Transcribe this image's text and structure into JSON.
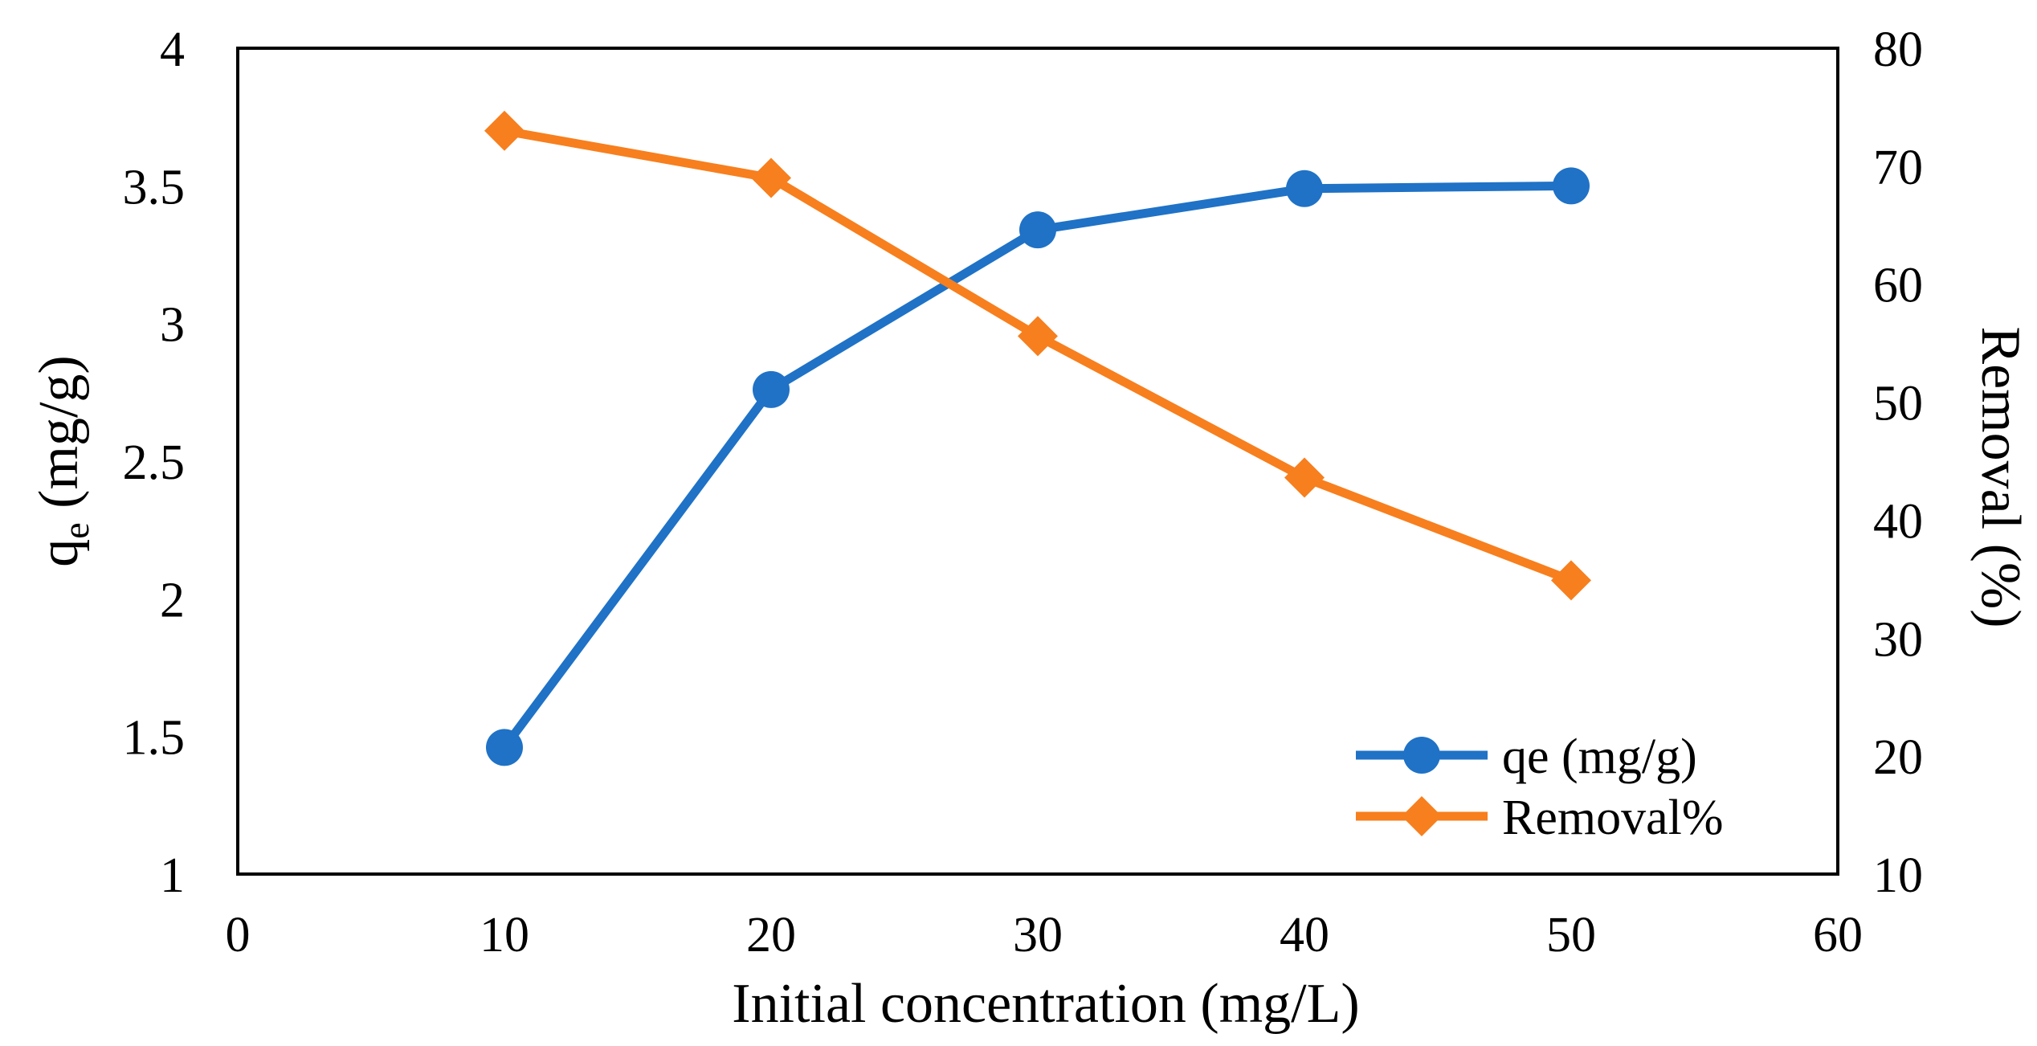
{
  "chart_data": {
    "type": "line",
    "title": "",
    "xlabel": "Initial concentration (mg/L)",
    "ylabel": {
      "main": "q",
      "subscript": "e",
      "suffix": " (mg/g)"
    },
    "y2label": "Removal (%)",
    "xlim": [
      0,
      60
    ],
    "ylim": [
      1,
      4
    ],
    "y2lim": [
      10,
      80
    ],
    "x_ticks": [
      "0",
      "10",
      "20",
      "30",
      "40",
      "50",
      "60"
    ],
    "y_ticks": [
      "1",
      "1.5",
      "2",
      "2.5",
      "3",
      "3.5",
      "4"
    ],
    "y2_ticks": [
      "10",
      "20",
      "30",
      "40",
      "50",
      "60",
      "70",
      "80"
    ],
    "x": [
      10,
      20,
      30,
      40,
      50
    ],
    "series": [
      {
        "name": "qe (mg/g)",
        "axis": "left",
        "marker": "circle",
        "color": "#1F72C6",
        "values": [
          1.46,
          2.76,
          3.34,
          3.49,
          3.5
        ]
      },
      {
        "name": "Removal%",
        "axis": "right",
        "marker": "diamond",
        "color": "#F77F1E",
        "values": [
          73.0,
          69.0,
          55.6,
          43.6,
          34.9
        ]
      }
    ],
    "legend": {
      "position": "bottom-right-inside",
      "entries": [
        "qe (mg/g)",
        "Removal%"
      ]
    },
    "grid": false
  }
}
